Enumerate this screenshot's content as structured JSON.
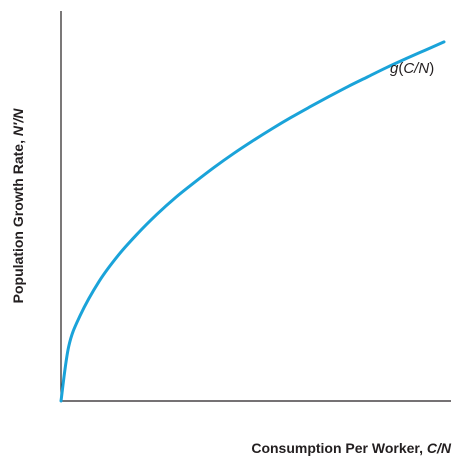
{
  "chart_data": {
    "type": "line",
    "title": "",
    "xlabel": {
      "text": "Consumption Per Worker, ",
      "var": "C/N"
    },
    "ylabel": {
      "text": "Population Growth Rate, ",
      "var": "N′/N"
    },
    "series": [
      {
        "name": {
          "fn": "g",
          "open": "(",
          "var": "C/N",
          "close": ")"
        },
        "color": "#1aa3d9",
        "x": [
          0,
          0.02,
          0.05,
          0.1,
          0.15,
          0.2,
          0.25,
          0.3,
          0.35,
          0.4,
          0.45,
          0.5,
          0.55,
          0.6,
          0.65,
          0.7,
          0.75,
          0.8,
          0.85,
          0.9,
          0.95,
          1.0
        ],
        "y": [
          0,
          0.167,
          0.263,
          0.369,
          0.449,
          0.515,
          0.574,
          0.627,
          0.674,
          0.719,
          0.761,
          0.8,
          0.837,
          0.872,
          0.905,
          0.937,
          0.968,
          0.997,
          1.026,
          1.053,
          1.079,
          1.105
        ]
      }
    ],
    "xlim": [
      0,
      1.0
    ],
    "ylim": [
      0,
      1.2
    ],
    "ticks": false,
    "grid": false,
    "legend": "none"
  }
}
